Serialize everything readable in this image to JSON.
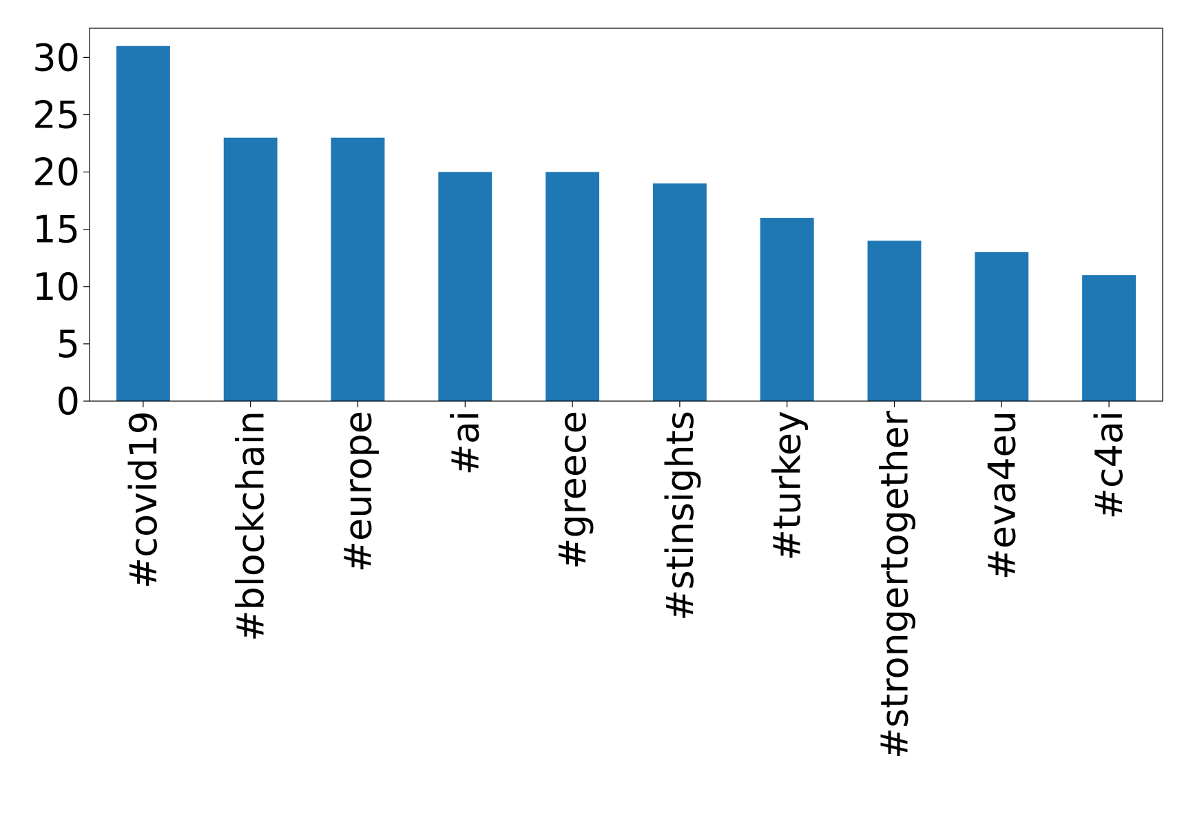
{
  "chart_data": {
    "type": "bar",
    "categories": [
      "#covid19",
      "#blockchain",
      "#europe",
      "#ai",
      "#greece",
      "#stinsights",
      "#turkey",
      "#strongertogether",
      "#eva4eu",
      "#c4ai"
    ],
    "values": [
      31,
      23,
      23,
      20,
      20,
      19,
      16,
      14,
      13,
      11
    ],
    "color": "#1f77b4",
    "ylim": [
      0,
      32.55
    ],
    "yticks": [
      0,
      5,
      10,
      15,
      20,
      25,
      30
    ],
    "grid": false
  }
}
